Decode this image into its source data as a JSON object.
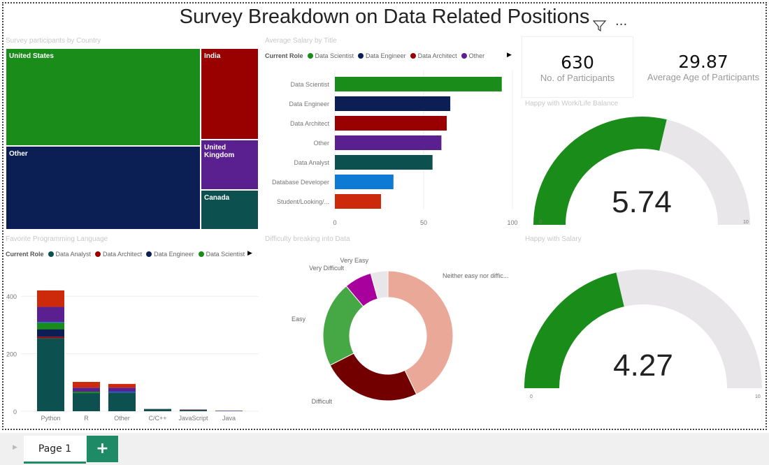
{
  "title": "Survey Breakdown on Data Related Positions",
  "header_icons": [
    "filter-icon",
    "more-options-icon"
  ],
  "more_label": "...",
  "colors": {
    "accent_green": "#1a8c1a",
    "gauge_track": "#e8e6e8"
  },
  "treemap": {
    "title": "Survey participants by Country",
    "items": [
      {
        "label": "United States",
        "color": "#1a8c1a"
      },
      {
        "label": "Other",
        "color": "#0b1f55"
      },
      {
        "label": "India",
        "color": "#990000"
      },
      {
        "label": "United Kingdom",
        "color": "#5b2090"
      },
      {
        "label": "Canada",
        "color": "#0c5050"
      }
    ]
  },
  "salary": {
    "title": "Average Salary by Title",
    "legend_title": "Current Role",
    "legend": [
      {
        "name": "Data Scientist",
        "color": "#1a8c1a"
      },
      {
        "name": "Data Engineer",
        "color": "#0b1f55"
      },
      {
        "name": "Data Architect",
        "color": "#990000"
      },
      {
        "name": "Other",
        "color": "#5b2090"
      }
    ]
  },
  "languages": {
    "title": "Favorite Programming Language",
    "legend_title": "Current Role",
    "legend": [
      {
        "name": "Data Analyst",
        "color": "#0c5050"
      },
      {
        "name": "Data Architect",
        "color": "#990000"
      },
      {
        "name": "Data Engineer",
        "color": "#0b1f55"
      },
      {
        "name": "Data Scientist",
        "color": "#1a8c1a"
      }
    ]
  },
  "difficulty": {
    "title": "Difficulty breaking into Data"
  },
  "kpis": [
    {
      "value": "630",
      "label": "No. of Participants"
    },
    {
      "value": "29.87",
      "label": "Average Age of Participants"
    }
  ],
  "gauges": [
    {
      "title": "Happy with Work/Life Balance",
      "value": 5.74,
      "value_label": "5.74",
      "min": "0",
      "max": "10"
    },
    {
      "title": "Happy with Salary",
      "value": 4.27,
      "value_label": "4.27",
      "min": "0",
      "max": "10"
    }
  ],
  "tabs": {
    "page": "Page 1",
    "add": "+"
  },
  "chart_data": [
    {
      "type": "bar",
      "orientation": "horizontal",
      "title": "Average Salary by Title",
      "categories": [
        "Data Scientist",
        "Data Engineer",
        "Data Architect",
        "Other",
        "Data Analyst",
        "Database Developer",
        "Student/Looking/..."
      ],
      "values": [
        94,
        65,
        63,
        60,
        55,
        33,
        26
      ],
      "colors": [
        "#1a8c1a",
        "#0b1f55",
        "#990000",
        "#5b2090",
        "#0c5050",
        "#0e7ad4",
        "#cc2a0a"
      ],
      "xlim": [
        0,
        100
      ],
      "xticks": [
        "0",
        "50",
        "100"
      ],
      "grid": true
    },
    {
      "type": "bar",
      "stacked": true,
      "title": "Favorite Programming Language",
      "categories": [
        "Python",
        "R",
        "Other",
        "C/C++",
        "JavaScript",
        "Java"
      ],
      "series": [
        {
          "name": "Data Analyst",
          "color": "#0c5050",
          "values": [
            254,
            63,
            63,
            7,
            4,
            1
          ]
        },
        {
          "name": "Data Architect",
          "color": "#990000",
          "values": [
            5,
            0,
            0,
            0,
            1,
            0
          ]
        },
        {
          "name": "Data Engineer",
          "color": "#0b1f55",
          "values": [
            26,
            0,
            2,
            1,
            1,
            0
          ]
        },
        {
          "name": "Data Scientist",
          "color": "#1a8c1a",
          "values": [
            22,
            5,
            0,
            0,
            0,
            0
          ]
        },
        {
          "color": "#0e7ad4",
          "values": [
            3,
            0,
            3,
            0,
            0,
            0
          ]
        },
        {
          "color": "#5b2090",
          "values": [
            53,
            14,
            14,
            0,
            0,
            1
          ]
        },
        {
          "color": "#cc2a0a",
          "values": [
            57,
            20,
            13,
            0,
            0,
            0
          ]
        }
      ],
      "ylim": [
        0,
        430
      ],
      "yticks": [
        "0",
        "200",
        "400"
      ],
      "grid": true
    },
    {
      "type": "pie",
      "donut": true,
      "title": "Difficulty breaking into Data",
      "labels": [
        "Neither easy nor diffic...",
        "Difficult",
        "Easy",
        "Very Difficult",
        "Very Easy"
      ],
      "values": [
        42.8,
        24.7,
        21.4,
        6.8,
        4.3
      ],
      "colors": [
        "#eaa898",
        "#720000",
        "#45a845",
        "#a8009c",
        "#e8e6e8"
      ]
    }
  ]
}
